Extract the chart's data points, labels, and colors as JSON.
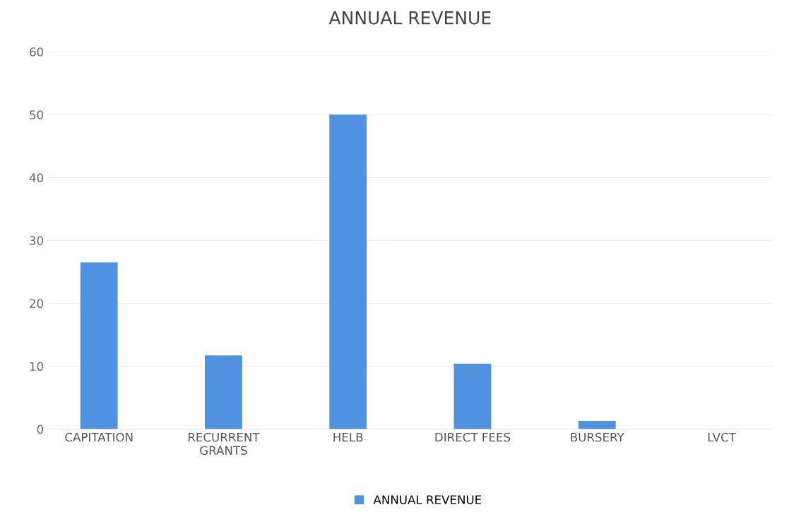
{
  "chart_data": {
    "type": "bar",
    "title": "ANNUAL REVENUE",
    "categories": [
      "CAPITATION",
      "RECURRENT\nGRANTS",
      "HELB",
      "DIRECT FEES",
      "BURSERY",
      "LVCT"
    ],
    "series": [
      {
        "name": "ANNUAL REVENUE",
        "color": "#4f92e0",
        "values": [
          26.5,
          11.7,
          50,
          10.4,
          1.3,
          0
        ]
      }
    ],
    "ylim": [
      0,
      60
    ],
    "yticks": [
      0,
      10,
      20,
      30,
      40,
      50,
      60
    ],
    "grid": "y",
    "legend": "bottom"
  }
}
